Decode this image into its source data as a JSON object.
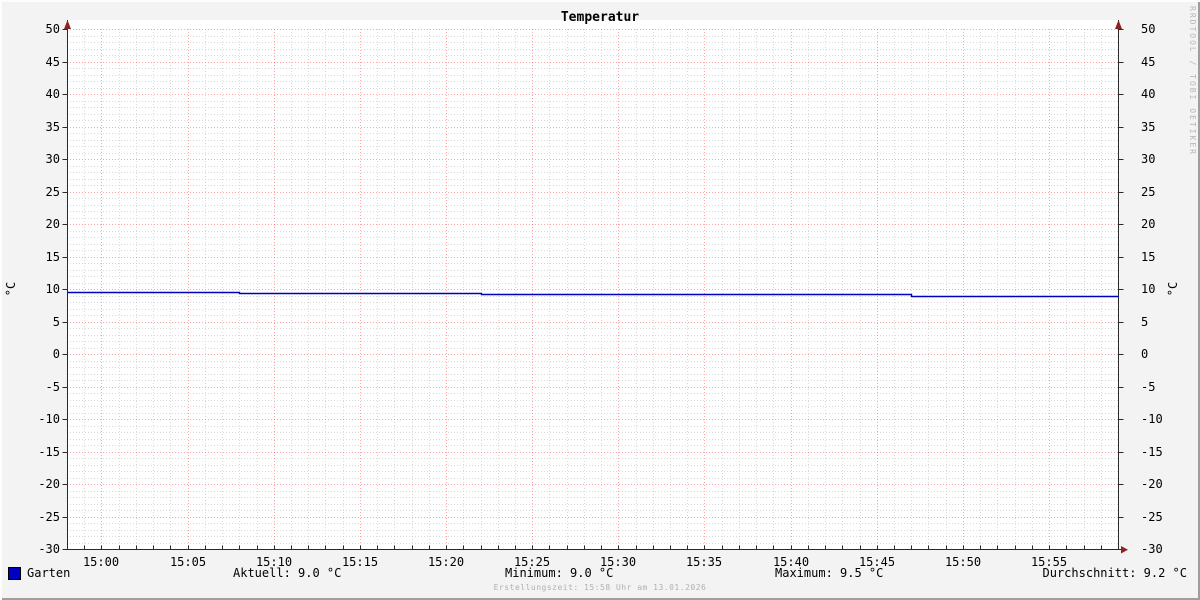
{
  "title": "Temperatur",
  "watermark": "RRDTOOL / TOBI OETIKER",
  "footer": {
    "creation_note": "Erstellungszeit: 15:58 Uhr am 13.01.2026"
  },
  "legend": {
    "series_label": "Garten",
    "series_color": "#0000c0",
    "stats": {
      "aktuell": "Aktuell: 9.0 °C",
      "minimum": "Minimum: 9.0 °C",
      "maximum": "Maximum: 9.5 °C",
      "durchschnitt": "Durchschnitt: 9.2 °C"
    }
  },
  "chart_data": {
    "type": "line",
    "title": "Temperatur",
    "ylabel": "°C",
    "ylabel_right": "°C",
    "ylim": [
      -30,
      50
    ],
    "y_major_step": 5,
    "y_minor_step": 1,
    "y_ticks": [
      50,
      45,
      40,
      35,
      30,
      25,
      20,
      15,
      10,
      5,
      0,
      -5,
      -10,
      -15,
      -20,
      -25,
      -30
    ],
    "x_range_minutes": [
      -2,
      59
    ],
    "x_minor_step_minutes": 1,
    "x_ticks": [
      {
        "minute": 0,
        "label": "15:00"
      },
      {
        "minute": 5,
        "label": "15:05"
      },
      {
        "minute": 10,
        "label": "15:10"
      },
      {
        "minute": 15,
        "label": "15:15"
      },
      {
        "minute": 20,
        "label": "15:20"
      },
      {
        "minute": 25,
        "label": "15:25"
      },
      {
        "minute": 30,
        "label": "15:30"
      },
      {
        "minute": 35,
        "label": "15:35"
      },
      {
        "minute": 40,
        "label": "15:40"
      },
      {
        "minute": 45,
        "label": "15:45"
      },
      {
        "minute": 50,
        "label": "15:50"
      },
      {
        "minute": 55,
        "label": "15:55"
      }
    ],
    "grid": {
      "style": "dotted",
      "major_color": "#ff0000",
      "major_opacity": 0.35,
      "minor_color": "#bbbbbb",
      "minor_opacity": 0.55
    },
    "axis_color": "#2a2a2a",
    "arrow_color": "#8b2323",
    "legend_position": "bottom",
    "series": [
      {
        "name": "Garten",
        "color": "#0000c0",
        "unit": "°C",
        "points_minute_value": [
          [
            -2,
            9.5
          ],
          [
            8,
            9.5
          ],
          [
            8,
            9.4
          ],
          [
            22,
            9.4
          ],
          [
            22,
            9.2
          ],
          [
            47,
            9.2
          ],
          [
            47,
            9.0
          ],
          [
            59,
            9.0
          ]
        ],
        "stats": {
          "aktuell": 9.0,
          "minimum": 9.0,
          "maximum": 9.5,
          "durchschnitt": 9.2
        }
      }
    ]
  },
  "colors": {
    "background": "#f3f3f3",
    "plot_background": "#ffffff",
    "bevel_light": "#fdfdfd",
    "bevel_dark": "#9e9e9e",
    "muted_text": "#b0b0b0",
    "watermark_text": "#b8b8b8"
  }
}
